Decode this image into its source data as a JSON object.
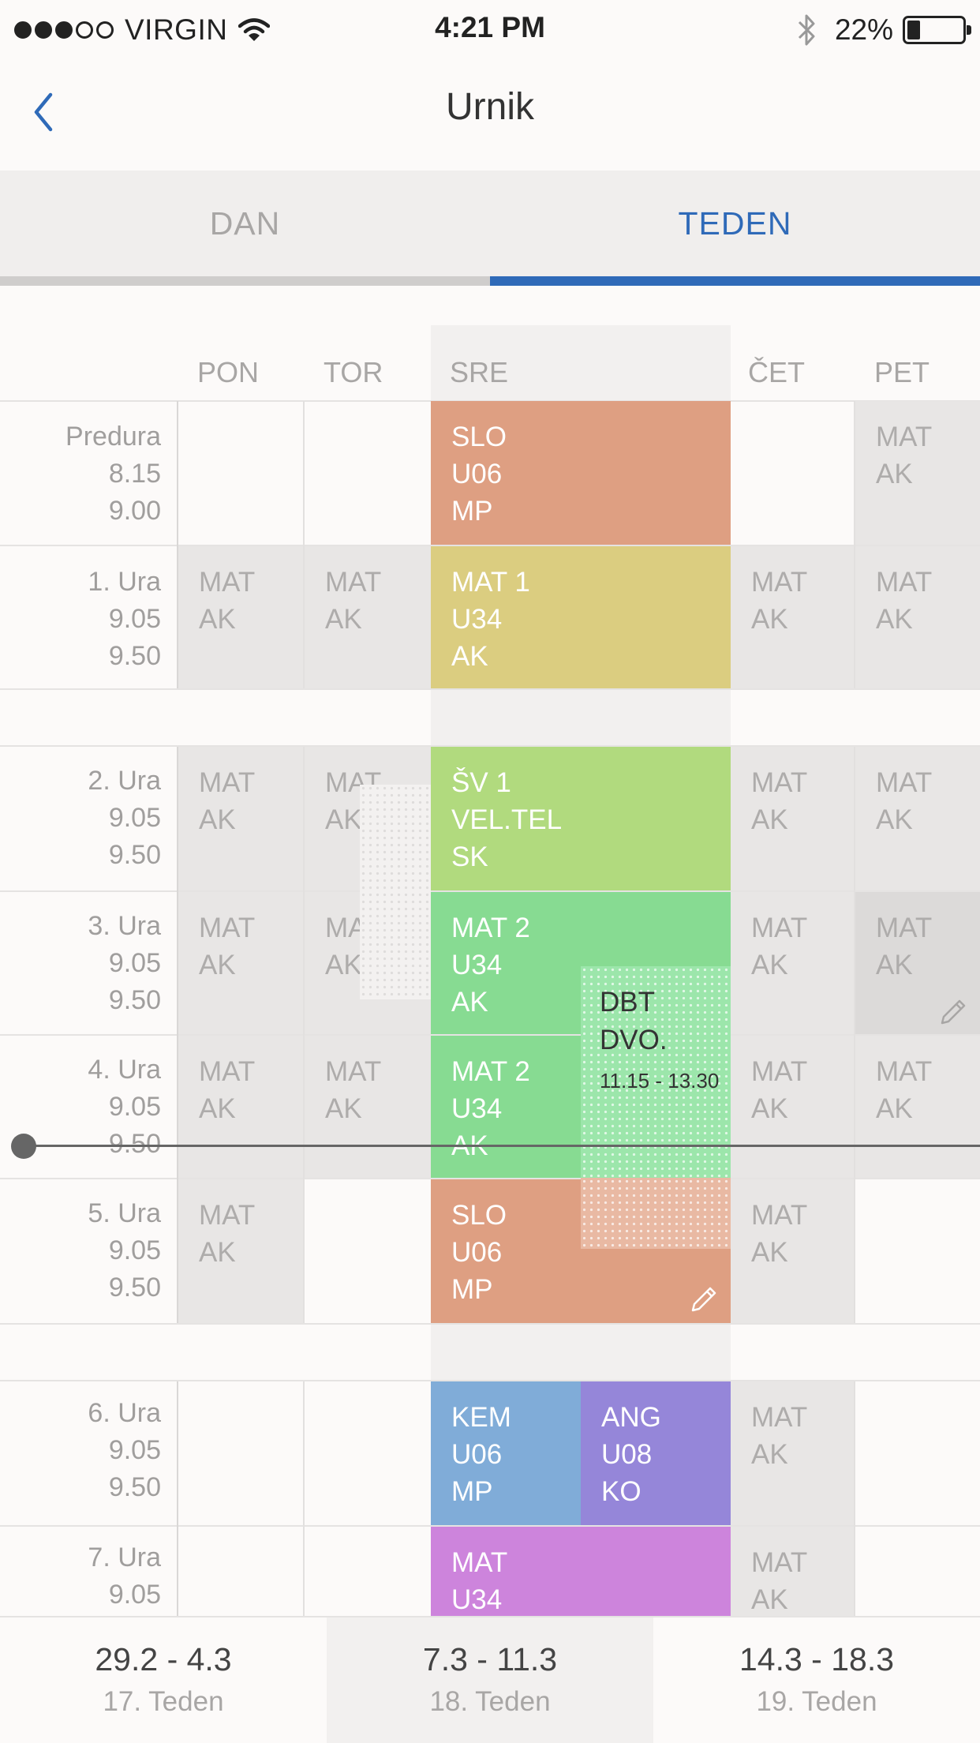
{
  "status_bar": {
    "carrier": "VIRGIN",
    "time": "4:21 PM",
    "battery": "22%",
    "signal_bars_filled": 3,
    "signal_bars_total": 5
  },
  "nav": {
    "title": "Urnik",
    "back_icon": "chevron-left-icon"
  },
  "tabs": [
    {
      "label": "DAN",
      "active": false
    },
    {
      "label": "TEDEN",
      "active": true
    }
  ],
  "days": [
    "PON",
    "TOR",
    "SRE",
    "ČET",
    "PET"
  ],
  "periods": [
    {
      "name": "Predura",
      "start": "8.15",
      "end": "9.00"
    },
    {
      "name": "1. Ura",
      "start": "9.05",
      "end": "9.50"
    },
    {
      "name": "2. Ura",
      "start": "9.05",
      "end": "9.50"
    },
    {
      "name": "3. Ura",
      "start": "9.05",
      "end": "9.50"
    },
    {
      "name": "4. Ura",
      "start": "9.05",
      "end": "9.50"
    },
    {
      "name": "5. Ura",
      "start": "9.05",
      "end": "9.50"
    },
    {
      "name": "6. Ura",
      "start": "9.05",
      "end": "9.50"
    },
    {
      "name": "7. Ura",
      "start": "9.05"
    }
  ],
  "muted_cell": {
    "subject": "MAT",
    "teacher": "AK"
  },
  "lessons": {
    "sre_predura": {
      "subject": "SLO",
      "room": "U06",
      "teacher": "MP"
    },
    "sre_1": {
      "subject": "MAT 1",
      "room": "U34",
      "teacher": "AK"
    },
    "sre_2": {
      "subject": "ŠV 1",
      "room": "VEL.TEL",
      "teacher": "SK"
    },
    "sre_3": {
      "subject": "MAT 2",
      "room": "U34",
      "teacher": "AK"
    },
    "sre_4": {
      "subject": "MAT 2",
      "room": "U34",
      "teacher": "AK"
    },
    "sre_5": {
      "subject": "SLO",
      "room": "U06",
      "teacher": "MP"
    },
    "sre_6a": {
      "subject": "KEM",
      "room": "U06",
      "teacher": "MP"
    },
    "sre_6b": {
      "subject": "ANG",
      "room": "U08",
      "teacher": "KO"
    },
    "sre_7": {
      "subject": "MAT",
      "room": "U34"
    }
  },
  "overlay_lesson": {
    "line1": "DBT",
    "line2": "DVO.",
    "time": "11.15 - 13.30"
  },
  "colors": {
    "accent": "#2f6ab8",
    "slo": "#de9f82",
    "mat1": "#dbcd80",
    "sv": "#b1da7e",
    "mat2": "#87db92",
    "kem": "#80acd8",
    "ang": "#9586d9",
    "mat7": "#cd84dc"
  },
  "weeks": [
    {
      "range": "29.2 - 4.3",
      "label": "17. Teden",
      "active": false
    },
    {
      "range": "7.3 - 11.3",
      "label": "18. Teden",
      "active": true
    },
    {
      "range": "14.3 - 18.3",
      "label": "19. Teden",
      "active": false
    }
  ]
}
